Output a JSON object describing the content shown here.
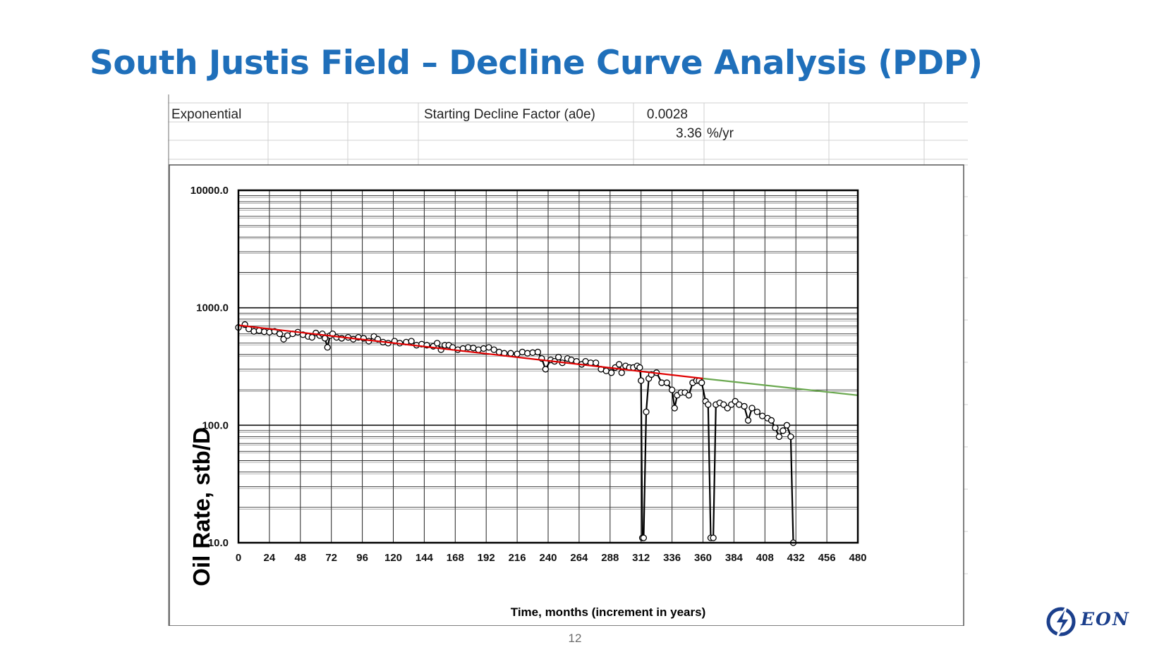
{
  "slide": {
    "title": "South Justis Field – Decline Curve Analysis (PDP)",
    "page_number": "12",
    "logo_text": "EON",
    "title_color": "#1f6fba"
  },
  "sheet": {
    "model_label": "Exponential",
    "factor_label": "Starting Decline Factor (a0e)",
    "factor_value": "0.0028",
    "annual_value": "3.36",
    "annual_unit": "%/yr"
  },
  "chart_data": {
    "type": "line",
    "xlabel": "Time, months (increment in years)",
    "ylabel": "Oil Rate, stb/D",
    "yscale": "log",
    "xlim": [
      0,
      480
    ],
    "ylim": [
      10,
      10000
    ],
    "x_ticks": [
      "0",
      "24",
      "48",
      "72",
      "96",
      "120",
      "144",
      "168",
      "192",
      "216",
      "240",
      "264",
      "288",
      "312",
      "336",
      "360",
      "384",
      "408",
      "432",
      "456",
      "480"
    ],
    "y_ticks": [
      "10000.0",
      "1000.0",
      "100.0",
      "10.0"
    ],
    "grid": true,
    "colors": {
      "history": "#000000",
      "fit": "#e00000",
      "forecast": "#6aa84f"
    },
    "series": [
      {
        "role": "history",
        "marker": "circle",
        "points": [
          [
            0,
            680
          ],
          [
            5,
            720
          ],
          [
            8,
            660
          ],
          [
            12,
            630
          ],
          [
            16,
            640
          ],
          [
            20,
            625
          ],
          [
            24,
            620
          ],
          [
            28,
            630
          ],
          [
            32,
            600
          ],
          [
            35,
            540
          ],
          [
            38,
            580
          ],
          [
            42,
            600
          ],
          [
            46,
            620
          ],
          [
            50,
            590
          ],
          [
            54,
            570
          ],
          [
            57,
            560
          ],
          [
            60,
            610
          ],
          [
            63,
            580
          ],
          [
            65,
            600
          ],
          [
            67,
            550
          ],
          [
            69,
            460
          ],
          [
            71,
            580
          ],
          [
            73,
            600
          ],
          [
            76,
            560
          ],
          [
            80,
            550
          ],
          [
            85,
            560
          ],
          [
            89,
            540
          ],
          [
            93,
            560
          ],
          [
            97,
            550
          ],
          [
            101,
            520
          ],
          [
            105,
            570
          ],
          [
            108,
            540
          ],
          [
            112,
            510
          ],
          [
            116,
            500
          ],
          [
            121,
            520
          ],
          [
            125,
            500
          ],
          [
            130,
            510
          ],
          [
            134,
            520
          ],
          [
            138,
            480
          ],
          [
            142,
            490
          ],
          [
            146,
            480
          ],
          [
            151,
            470
          ],
          [
            154,
            500
          ],
          [
            157,
            440
          ],
          [
            160,
            480
          ],
          [
            163,
            480
          ],
          [
            166,
            460
          ],
          [
            170,
            440
          ],
          [
            174,
            450
          ],
          [
            178,
            460
          ],
          [
            182,
            455
          ],
          [
            186,
            440
          ],
          [
            190,
            450
          ],
          [
            194,
            460
          ],
          [
            198,
            440
          ],
          [
            202,
            420
          ],
          [
            206,
            410
          ],
          [
            211,
            410
          ],
          [
            216,
            405
          ],
          [
            220,
            420
          ],
          [
            224,
            410
          ],
          [
            228,
            415
          ],
          [
            232,
            420
          ],
          [
            235,
            370
          ],
          [
            238,
            300
          ],
          [
            242,
            360
          ],
          [
            245,
            350
          ],
          [
            248,
            380
          ],
          [
            251,
            340
          ],
          [
            255,
            370
          ],
          [
            258,
            360
          ],
          [
            262,
            350
          ],
          [
            266,
            330
          ],
          [
            269,
            350
          ],
          [
            273,
            340
          ],
          [
            277,
            340
          ],
          [
            281,
            300
          ],
          [
            285,
            290
          ],
          [
            289,
            280
          ],
          [
            292,
            310
          ],
          [
            295,
            330
          ],
          [
            297,
            280
          ],
          [
            300,
            320
          ],
          [
            303,
            310
          ],
          [
            306,
            310
          ],
          [
            309,
            320
          ],
          [
            311,
            310
          ],
          [
            312,
            240
          ],
          [
            313,
            11
          ],
          [
            314,
            11
          ],
          [
            316,
            130
          ],
          [
            318,
            250
          ],
          [
            320,
            270
          ],
          [
            324,
            280
          ],
          [
            328,
            230
          ],
          [
            332,
            230
          ],
          [
            336,
            200
          ],
          [
            338,
            140
          ],
          [
            340,
            180
          ],
          [
            343,
            190
          ],
          [
            346,
            190
          ],
          [
            349,
            180
          ],
          [
            352,
            230
          ],
          [
            355,
            240
          ],
          [
            357,
            240
          ],
          [
            359,
            230
          ],
          [
            362,
            160
          ],
          [
            364,
            150
          ],
          [
            366,
            11
          ],
          [
            368,
            11
          ],
          [
            370,
            150
          ],
          [
            373,
            155
          ],
          [
            376,
            150
          ],
          [
            379,
            140
          ],
          [
            382,
            150
          ],
          [
            385,
            160
          ],
          [
            388,
            150
          ],
          [
            392,
            145
          ],
          [
            395,
            110
          ],
          [
            398,
            140
          ],
          [
            402,
            130
          ],
          [
            406,
            120
          ],
          [
            410,
            115
          ],
          [
            413,
            110
          ],
          [
            416,
            95
          ],
          [
            419,
            80
          ],
          [
            422,
            90
          ],
          [
            425,
            100
          ],
          [
            428,
            80
          ],
          [
            430,
            10
          ]
        ]
      },
      {
        "role": "fit",
        "points": [
          [
            0,
            710
          ],
          [
            360,
            250
          ]
        ]
      },
      {
        "role": "forecast",
        "points": [
          [
            360,
            250
          ],
          [
            480,
            180
          ]
        ]
      }
    ]
  }
}
